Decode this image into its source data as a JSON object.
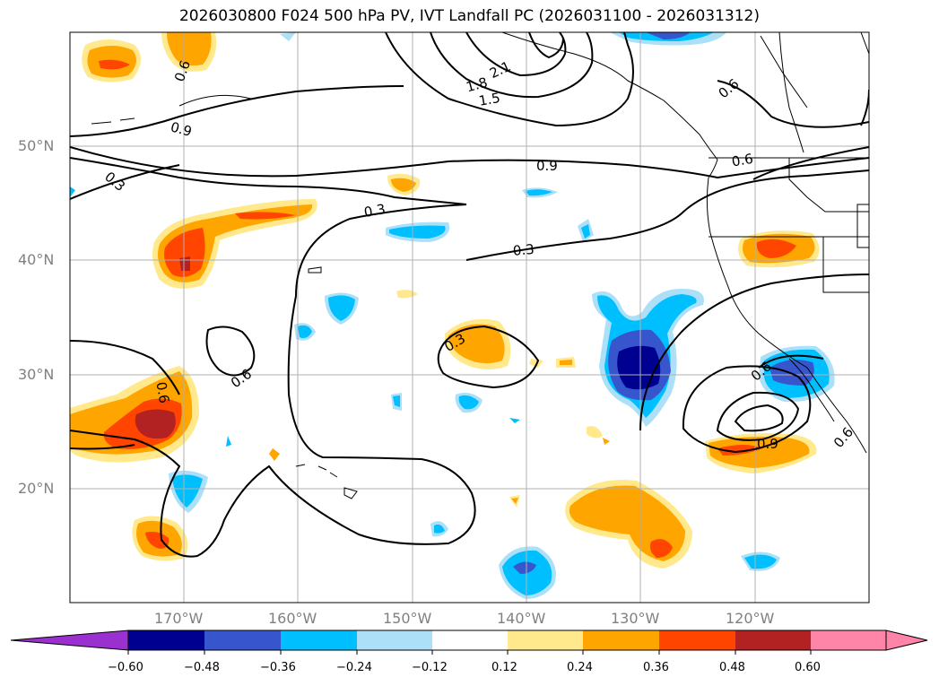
{
  "title": "2026030800 F024 500 hPa PV, IVT Landfall PC (2026031100 - 2026031312)",
  "axes": {
    "lat_labels": [
      "50°N",
      "40°N",
      "30°N",
      "20°N"
    ],
    "lon_labels": [
      "170°W",
      "160°W",
      "150°W",
      "140°W",
      "130°W",
      "120°W"
    ]
  },
  "contour_labels": [
    "0.6",
    "0.9",
    "0.3",
    "2.1",
    "1.8",
    "1.5",
    "0.6",
    "0.9",
    "0.6",
    "0.3",
    "0.3",
    "0.3",
    "0.6",
    "0.6",
    "0.6",
    "0.9",
    "0.6"
  ],
  "colorbar": {
    "ticks": [
      "−0.60",
      "−0.48",
      "−0.36",
      "−0.24",
      "−0.12",
      "0.12",
      "0.24",
      "0.36",
      "0.48",
      "0.60"
    ],
    "colors": [
      "#9b30d0",
      "#000090",
      "#3755cc",
      "#00bfff",
      "#abe0f8",
      "#ffffff",
      "#ffe98c",
      "#ffa500",
      "#ff4500",
      "#b22222",
      "#ff85a8"
    ]
  },
  "palette": {
    "yellow": "#ffe98c",
    "orange": "#ffa500",
    "red": "#ff4500",
    "darkred": "#b22222",
    "lightblue": "#abe0f8",
    "cyan": "#00bfff",
    "blue": "#3755cc",
    "navy": "#000090"
  }
}
